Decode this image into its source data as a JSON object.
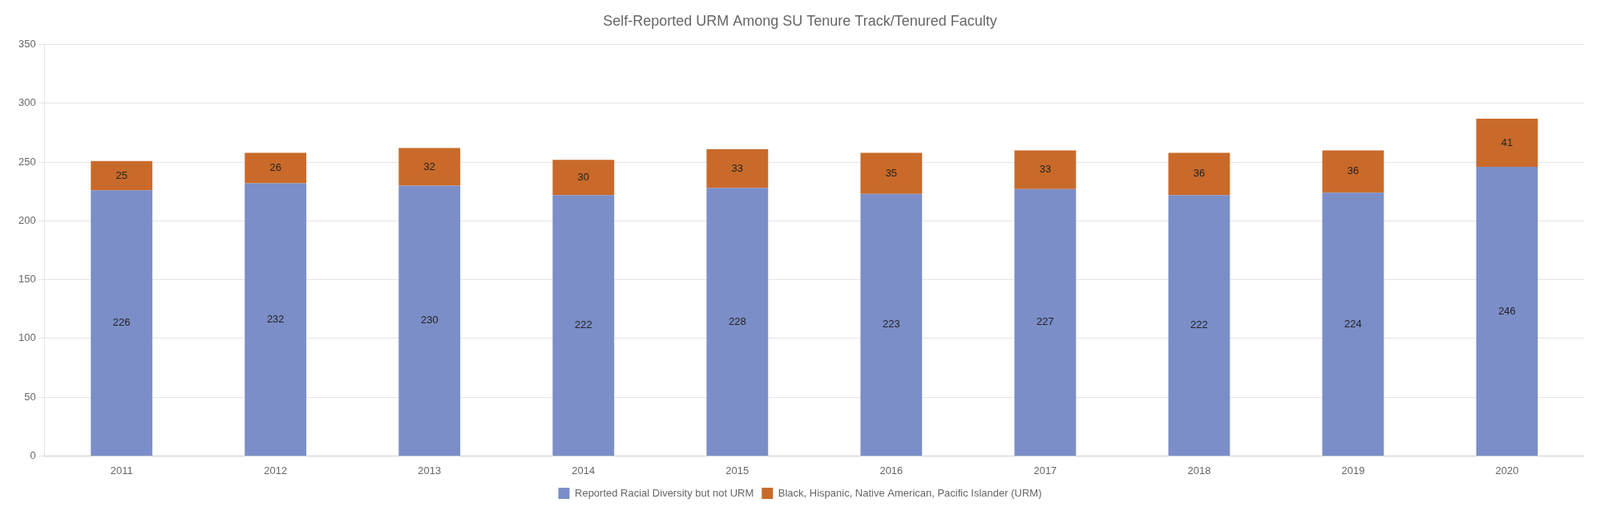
{
  "chart_data": {
    "type": "bar",
    "title": "Self-Reported URM Among SU Tenure Track/Tenured Faculty",
    "categories": [
      "2011",
      "2012",
      "2013",
      "2014",
      "2015",
      "2016",
      "2017",
      "2018",
      "2019",
      "2020"
    ],
    "series": [
      {
        "name": "Reported Racial Diversity but not URM",
        "color": "#7B8EC8",
        "values": [
          226,
          232,
          230,
          222,
          228,
          223,
          227,
          222,
          224,
          246
        ]
      },
      {
        "name": "Black, Hispanic, Native American, Pacific Islander (URM)",
        "color": "#C96A2A",
        "values": [
          25,
          26,
          32,
          30,
          33,
          35,
          33,
          36,
          36,
          41
        ]
      }
    ],
    "stacked": true,
    "data_labels": true,
    "ylim": [
      0,
      350
    ],
    "yticks": [
      0,
      50,
      100,
      150,
      200,
      250,
      300,
      350
    ],
    "grid": true,
    "legend": "bottom"
  }
}
